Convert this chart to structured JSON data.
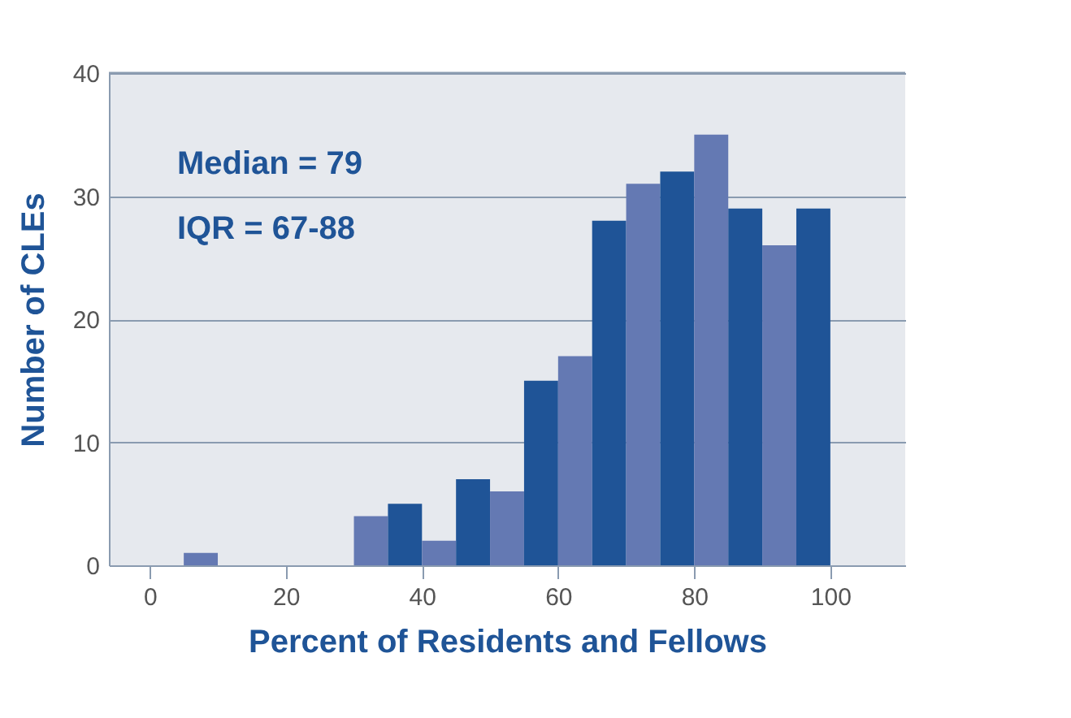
{
  "chart_data": {
    "type": "histogram",
    "xlabel": "Percent of Residents and Fellows",
    "ylabel": "Number of CLEs",
    "bins": [
      5,
      10,
      15,
      20,
      25,
      30,
      35,
      40,
      45,
      50,
      55,
      60,
      65,
      70,
      75,
      80,
      85,
      90,
      95,
      100
    ],
    "values": [
      1,
      0,
      0,
      0,
      0,
      4,
      5,
      2,
      7,
      6,
      15,
      17,
      28,
      31,
      32,
      35,
      29,
      26,
      29
    ],
    "colors": [
      "#6479b3",
      "#1f5497",
      "#6479b3",
      "#1f5497",
      "#6479b3",
      "#6479b3",
      "#1f5497",
      "#6479b3",
      "#1f5497",
      "#6479b3",
      "#1f5497",
      "#6479b3",
      "#1f5497",
      "#6479b3",
      "#1f5497",
      "#6479b3",
      "#1f5497",
      "#6479b3",
      "#1f5497"
    ],
    "xlim": [
      -6,
      111
    ],
    "xticks": [
      0,
      20,
      40,
      60,
      80,
      100
    ],
    "ylim": [
      0,
      40
    ],
    "yticks": [
      0,
      10,
      20,
      30,
      40
    ],
    "grid": "y",
    "annotations": [
      "Median = 79",
      "IQR = 67-88"
    ]
  }
}
